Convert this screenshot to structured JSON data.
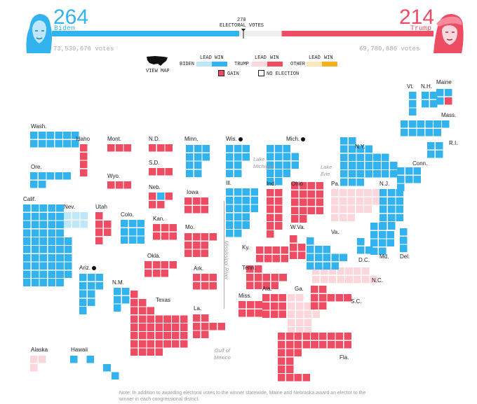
{
  "header": {
    "biden": {
      "ev": "264",
      "name": "Biden",
      "votes": "73,539,676 votes"
    },
    "trump": {
      "ev": "214",
      "name": "Trump",
      "votes": "69,780,886 votes"
    },
    "threshold": {
      "num": "270",
      "label": "ELECTORAL VOTES"
    },
    "view_map": "VIEW MAP"
  },
  "legend": {
    "biden_label": "BIDEN",
    "trump_label": "TRUMP",
    "other_label": "OTHER",
    "lead": "LEAD",
    "win": "WIN",
    "gain": "GAIN",
    "no_election": "NO ELECTION"
  },
  "colors": {
    "biden_win": "#33b3ee",
    "biden_lead": "#bfe7fa",
    "trump_win": "#ee4c63",
    "trump_lead": "#fbd7dc",
    "other_lead": "#fbe8b9",
    "other_win": "#f3b21d"
  },
  "annotations": {
    "lake_michigan": "Lake\nMichigan",
    "lake_erie": "Lake\nErie",
    "mississippi": "Mississippi River",
    "gulf": "Gulf of\nMexico"
  },
  "note": "Note: In addition to awarding electoral votes to the winner statewide, Maine and Nebraska award an elector to the winner in each congressional district.",
  "states": [
    {
      "name": "Wash.",
      "ev": 12,
      "status": "biden_win",
      "dot": false
    },
    {
      "name": "Ore.",
      "ev": 7,
      "status": "biden_win",
      "dot": false
    },
    {
      "name": "Calif.",
      "ev": 55,
      "status": "biden_win",
      "dot": false
    },
    {
      "name": "Idaho",
      "ev": 4,
      "status": "trump_win",
      "dot": false
    },
    {
      "name": "Nev.",
      "ev": 6,
      "status": "biden_lead",
      "dot": false
    },
    {
      "name": "Utah",
      "ev": 6,
      "status": "trump_win",
      "dot": false
    },
    {
      "name": "Ariz.",
      "ev": 11,
      "status": "biden_win",
      "dot": true
    },
    {
      "name": "Mont.",
      "ev": 3,
      "status": "trump_win",
      "dot": false
    },
    {
      "name": "Wyo.",
      "ev": 3,
      "status": "trump_win",
      "dot": false
    },
    {
      "name": "Colo.",
      "ev": 9,
      "status": "biden_win",
      "dot": false
    },
    {
      "name": "N.M.",
      "ev": 5,
      "status": "biden_win",
      "dot": false
    },
    {
      "name": "N.D.",
      "ev": 3,
      "status": "trump_win",
      "dot": false
    },
    {
      "name": "S.D.",
      "ev": 3,
      "status": "trump_win",
      "dot": false
    },
    {
      "name": "Neb.",
      "ev": 5,
      "status": "trump_win",
      "dot": false
    },
    {
      "name": "Kan.",
      "ev": 6,
      "status": "trump_win",
      "dot": false
    },
    {
      "name": "Okla.",
      "ev": 7,
      "status": "trump_win",
      "dot": false
    },
    {
      "name": "Texas",
      "ev": 38,
      "status": "trump_win",
      "dot": false
    },
    {
      "name": "Minn.",
      "ev": 10,
      "status": "biden_win",
      "dot": false
    },
    {
      "name": "Iowa",
      "ev": 6,
      "status": "trump_win",
      "dot": false
    },
    {
      "name": "Mo.",
      "ev": 10,
      "status": "trump_win",
      "dot": false
    },
    {
      "name": "Ark.",
      "ev": 6,
      "status": "trump_win",
      "dot": false
    },
    {
      "name": "La.",
      "ev": 8,
      "status": "trump_win",
      "dot": false
    },
    {
      "name": "Wis.",
      "ev": 10,
      "status": "biden_win",
      "dot": true
    },
    {
      "name": "Ill.",
      "ev": 20,
      "status": "biden_win",
      "dot": false
    },
    {
      "name": "Mich.",
      "ev": 16,
      "status": "biden_win",
      "dot": true
    },
    {
      "name": "Ind.",
      "ev": 11,
      "status": "trump_win",
      "dot": false
    },
    {
      "name": "Ohio",
      "ev": 18,
      "status": "trump_win",
      "dot": false
    },
    {
      "name": "Ky.",
      "ev": 8,
      "status": "trump_win",
      "dot": false
    },
    {
      "name": "Tenn.",
      "ev": 11,
      "status": "trump_win",
      "dot": false
    },
    {
      "name": "Miss.",
      "ev": 6,
      "status": "trump_win",
      "dot": false
    },
    {
      "name": "Ala.",
      "ev": 9,
      "status": "trump_win",
      "dot": false
    },
    {
      "name": "Ga.",
      "ev": 16,
      "status": "trump_lead",
      "dot": false
    },
    {
      "name": "Fla.",
      "ev": 29,
      "status": "trump_win",
      "dot": false
    },
    {
      "name": "S.C.",
      "ev": 9,
      "status": "trump_win",
      "dot": false
    },
    {
      "name": "N.C.",
      "ev": 15,
      "status": "trump_lead",
      "dot": false
    },
    {
      "name": "Va.",
      "ev": 13,
      "status": "biden_win",
      "dot": false
    },
    {
      "name": "W.Va.",
      "ev": 5,
      "status": "trump_win",
      "dot": false
    },
    {
      "name": "Pa.",
      "ev": 20,
      "status": "trump_lead",
      "dot": false
    },
    {
      "name": "N.Y.",
      "ev": 29,
      "status": "biden_win",
      "dot": false
    },
    {
      "name": "N.J.",
      "ev": 14,
      "status": "biden_win",
      "dot": false
    },
    {
      "name": "Md.",
      "ev": 10,
      "status": "biden_win",
      "dot": false
    },
    {
      "name": "Del.",
      "ev": 3,
      "status": "biden_win",
      "dot": false
    },
    {
      "name": "D.C.",
      "ev": 3,
      "status": "biden_win",
      "dot": false
    },
    {
      "name": "Conn.",
      "ev": 7,
      "status": "biden_win",
      "dot": false
    },
    {
      "name": "R.I.",
      "ev": 4,
      "status": "biden_win",
      "dot": false
    },
    {
      "name": "Mass.",
      "ev": 11,
      "status": "biden_win",
      "dot": false
    },
    {
      "name": "Vt.",
      "ev": 3,
      "status": "biden_win",
      "dot": false
    },
    {
      "name": "N.H.",
      "ev": 4,
      "status": "biden_win",
      "dot": false
    },
    {
      "name": "Maine",
      "ev": 4,
      "status": "biden_win",
      "dot": false
    },
    {
      "name": "Alaska",
      "ev": 3,
      "status": "trump_lead",
      "dot": false
    },
    {
      "name": "Hawaii",
      "ev": 4,
      "status": "biden_win",
      "dot": false
    }
  ]
}
